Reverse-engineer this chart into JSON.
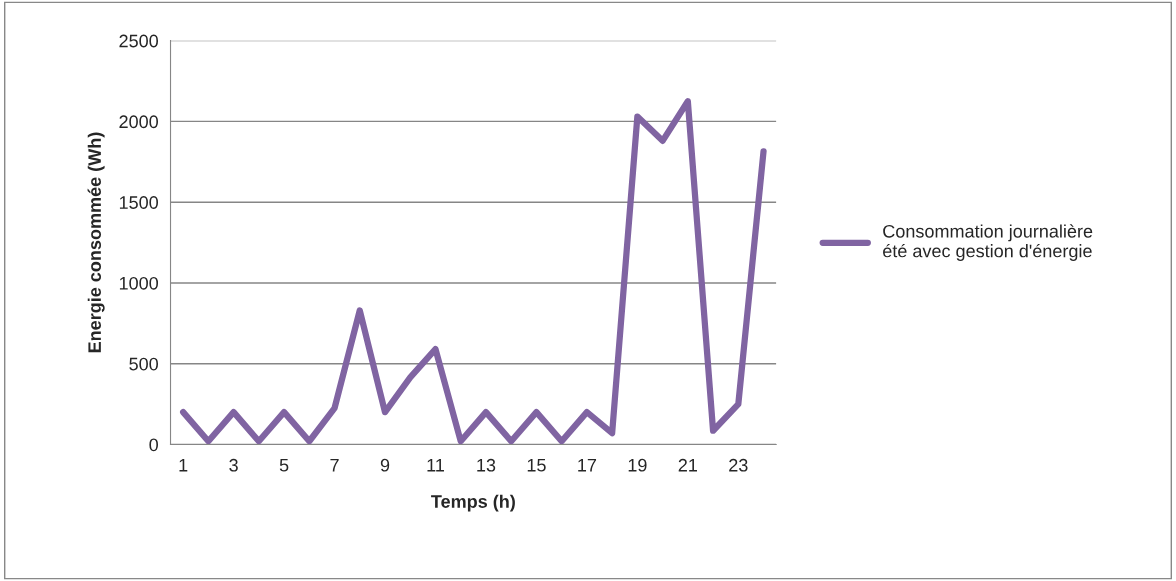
{
  "chart_data": {
    "type": "line",
    "xlabel": "Temps (h)",
    "ylabel": "Energie consommée (Wh)",
    "categories": [
      "1",
      null,
      "3",
      null,
      "5",
      null,
      "7",
      null,
      "9",
      null,
      "11",
      null,
      "13",
      null,
      "15",
      null,
      "17",
      null,
      "19",
      null,
      "21",
      null,
      "23",
      null
    ],
    "series": [
      {
        "name": "Consommation journalière été avec gestion d'énergie",
        "color": "#8064a2",
        "values": [
          200,
          20,
          200,
          20,
          200,
          20,
          225,
          830,
          200,
          415,
          590,
          20,
          200,
          20,
          200,
          20,
          200,
          70,
          2030,
          1880,
          2125,
          85,
          250,
          1815
        ]
      }
    ],
    "ylim": [
      0,
      2500
    ],
    "yticks": [
      0,
      500,
      1000,
      1500,
      2000,
      2500
    ],
    "grid": "y",
    "legend": "right",
    "marker": "none",
    "line_style": "solid"
  }
}
